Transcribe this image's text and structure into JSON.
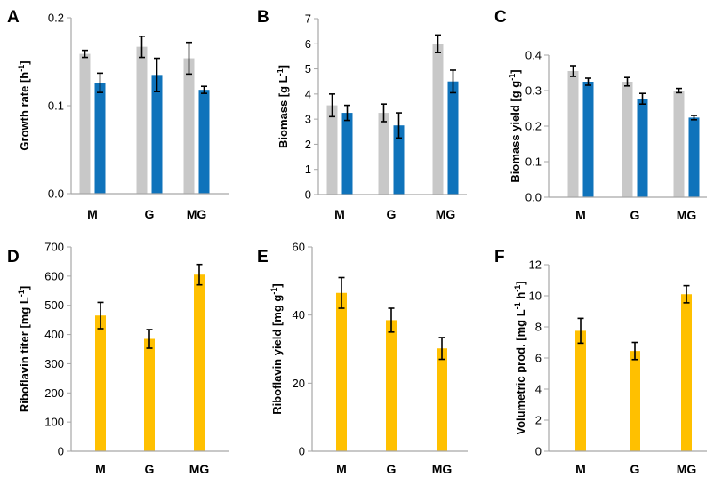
{
  "colors": {
    "light": "#c8c8c8",
    "blue": "#0f73bb",
    "gold": "#ffc000",
    "axis": "#a6a6a6",
    "error": "#000000"
  },
  "chart_data": [
    {
      "panel": "A",
      "type": "bar",
      "categories": [
        "M",
        "G",
        "MG"
      ],
      "ylabel": "Growth rate [h-1]",
      "ylabel_main": "Growth rate [h",
      "ylabel_sup": "-1",
      "ylabel_end": "]",
      "ylim": [
        0,
        0.2
      ],
      "yticks": [
        0,
        0.1,
        0.2
      ],
      "ytick_labels": [
        "0.0",
        "0.1",
        "0.2"
      ],
      "series": [
        {
          "name": "light",
          "color": "light",
          "values": [
            0.159,
            0.167,
            0.154
          ],
          "errors": [
            0.004,
            0.012,
            0.018
          ]
        },
        {
          "name": "blue",
          "color": "blue",
          "values": [
            0.126,
            0.135,
            0.118
          ],
          "errors": [
            0.011,
            0.019,
            0.004
          ]
        }
      ]
    },
    {
      "panel": "B",
      "type": "bar",
      "categories": [
        "M",
        "G",
        "MG"
      ],
      "ylabel": "Biomass [g L-1]",
      "ylabel_main": "Biomass [g L",
      "ylabel_sup": "-1",
      "ylabel_end": "]",
      "ylim": [
        0,
        7
      ],
      "yticks": [
        0,
        1,
        2,
        3,
        4,
        5,
        6,
        7
      ],
      "ytick_labels": [
        "0",
        "1",
        "2",
        "3",
        "4",
        "5",
        "6",
        "7"
      ],
      "series": [
        {
          "name": "light",
          "color": "light",
          "values": [
            3.55,
            3.25,
            6.0
          ],
          "errors": [
            0.45,
            0.35,
            0.35
          ]
        },
        {
          "name": "blue",
          "color": "blue",
          "values": [
            3.25,
            2.75,
            4.5
          ],
          "errors": [
            0.3,
            0.5,
            0.45
          ]
        }
      ]
    },
    {
      "panel": "C",
      "type": "bar",
      "categories": [
        "M",
        "G",
        "MG"
      ],
      "ylabel": "Biomass yield [g g-1]",
      "ylabel_main": "Biomass yield [g g",
      "ylabel_sup": "-1",
      "ylabel_end": "]",
      "ylim": [
        0,
        0.4
      ],
      "yticks": [
        0,
        0.1,
        0.2,
        0.3,
        0.4
      ],
      "ytick_labels": [
        "0.0",
        "0.1",
        "0.2",
        "0.3",
        "0.4"
      ],
      "series": [
        {
          "name": "light",
          "color": "light",
          "values": [
            0.355,
            0.325,
            0.3
          ],
          "errors": [
            0.015,
            0.012,
            0.006
          ]
        },
        {
          "name": "blue",
          "color": "blue",
          "values": [
            0.325,
            0.277,
            0.224
          ],
          "errors": [
            0.01,
            0.015,
            0.006
          ]
        }
      ]
    },
    {
      "panel": "D",
      "type": "bar",
      "categories": [
        "M",
        "G",
        "MG"
      ],
      "ylabel": "Riboflavin titer [mg L-1]",
      "ylabel_main": "Riboflavin titer [mg L",
      "ylabel_sup": "-1",
      "ylabel_end": "]",
      "ylim": [
        0,
        700
      ],
      "yticks": [
        0,
        100,
        200,
        300,
        400,
        500,
        600,
        700
      ],
      "ytick_labels": [
        "0",
        "100",
        "200",
        "300",
        "400",
        "500",
        "600",
        "700"
      ],
      "series": [
        {
          "name": "riboflavin",
          "color": "gold",
          "values": [
            465,
            385,
            605
          ],
          "errors": [
            45,
            32,
            35
          ]
        }
      ]
    },
    {
      "panel": "E",
      "type": "bar",
      "categories": [
        "M",
        "G",
        "MG"
      ],
      "ylabel": "Riboflavin yield [mg g-1]",
      "ylabel_main": "Riboflavin yield [mg g",
      "ylabel_sup": "-1",
      "ylabel_end": "]",
      "ylim": [
        0,
        60
      ],
      "yticks": [
        0,
        20,
        40,
        60
      ],
      "ytick_labels": [
        "0",
        "20",
        "40",
        "60"
      ],
      "series": [
        {
          "name": "riboflavin",
          "color": "gold",
          "values": [
            46.5,
            38.5,
            30.2
          ],
          "errors": [
            4.5,
            3.5,
            3.2
          ]
        }
      ]
    },
    {
      "panel": "F",
      "type": "bar",
      "categories": [
        "M",
        "G",
        "MG"
      ],
      "ylabel": "Volumetric prod. [mg L-1 h-1]",
      "ylabel_main": "Volumetric prod. [mg L",
      "ylabel_sup": "-1",
      "ylabel_mid": " h",
      "ylabel_sup2": "-1",
      "ylabel_end": "]",
      "ylim": [
        0,
        12
      ],
      "yticks": [
        0,
        2,
        4,
        6,
        8,
        10,
        12
      ],
      "ytick_labels": [
        "0",
        "2",
        "4",
        "6",
        "8",
        "10",
        "12"
      ],
      "series": [
        {
          "name": "riboflavin",
          "color": "gold",
          "values": [
            7.75,
            6.45,
            10.1
          ],
          "errors": [
            0.8,
            0.55,
            0.55
          ]
        }
      ]
    }
  ]
}
